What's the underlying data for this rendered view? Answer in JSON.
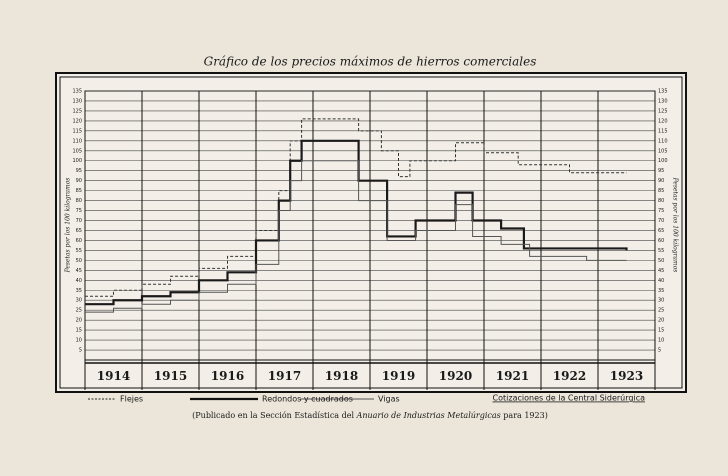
{
  "chart_data": {
    "type": "step",
    "title": "Gráfico de los precios máximos de hierros comerciales",
    "y_label": "Pesetas por los 100 kilogramos",
    "y2_label": "Pesetas por los 100 kilogramos",
    "source_note": "Cotizaciones de la Central Siderúrgica",
    "caption_parts": [
      "(Publicado en la Sección Estadística del ",
      "Anuario de Industrias Metalúrgicas",
      " para 1923)"
    ],
    "xlim": [
      1914,
      1924
    ],
    "xticks": [
      {
        "value": 1914.5,
        "label": "1914"
      },
      {
        "value": 1915.5,
        "label": "1915"
      },
      {
        "value": 1916.5,
        "label": "1916"
      },
      {
        "value": 1917.5,
        "label": "1917"
      },
      {
        "value": 1918.5,
        "label": "1918"
      },
      {
        "value": 1919.5,
        "label": "1919"
      },
      {
        "value": 1920.5,
        "label": "1920"
      },
      {
        "value": 1921.5,
        "label": "1921"
      },
      {
        "value": 1922.5,
        "label": "1922"
      },
      {
        "value": 1923.5,
        "label": "1923"
      }
    ],
    "ylim": [
      0,
      135
    ],
    "yticks": [
      5,
      10,
      15,
      20,
      25,
      30,
      35,
      40,
      45,
      50,
      55,
      60,
      65,
      70,
      75,
      80,
      85,
      90,
      95,
      100,
      105,
      110,
      115,
      120,
      125,
      130,
      135
    ],
    "grid": true,
    "series": [
      {
        "name": "Flejes",
        "color": "#333333",
        "style": "dashed",
        "width": 1,
        "x": [
          1914,
          1914.5,
          1915,
          1915.5,
          1916,
          1916.5,
          1917,
          1917.4,
          1917.6,
          1917.8,
          1918.8,
          1919.2,
          1919.5,
          1919.7,
          1920.5,
          1921,
          1921.6,
          1922.5,
          1923.5
        ],
        "values": [
          32,
          35,
          38,
          42,
          46,
          52,
          65,
          85,
          110,
          121,
          115,
          105,
          92,
          100,
          109,
          104,
          98,
          94,
          94
        ]
      },
      {
        "name": "Redondos y cuadrados",
        "color": "#1a1a1a",
        "style": "solid",
        "width": 2.2,
        "x": [
          1914,
          1914.5,
          1915,
          1915.5,
          1916,
          1916.5,
          1917,
          1917.4,
          1917.6,
          1917.8,
          1918.8,
          1919.3,
          1919.8,
          1920.5,
          1920.8,
          1921.3,
          1921.7,
          1923.5
        ],
        "values": [
          28,
          30,
          32,
          34,
          40,
          44,
          60,
          80,
          100,
          110,
          90,
          62,
          70,
          84,
          70,
          66,
          56,
          55
        ]
      },
      {
        "name": "Vigas",
        "color": "#555555",
        "style": "solid",
        "width": 1,
        "x": [
          1914,
          1914.5,
          1915,
          1915.5,
          1916,
          1916.5,
          1917,
          1917.4,
          1917.6,
          1917.8,
          1918.8,
          1919.3,
          1919.8,
          1920.5,
          1920.8,
          1921.3,
          1921.8,
          1922.8,
          1923.5
        ],
        "values": [
          24,
          26,
          28,
          30,
          34,
          38,
          48,
          75,
          90,
          100,
          80,
          60,
          65,
          78,
          62,
          58,
          52,
          50,
          50
        ]
      }
    ]
  }
}
